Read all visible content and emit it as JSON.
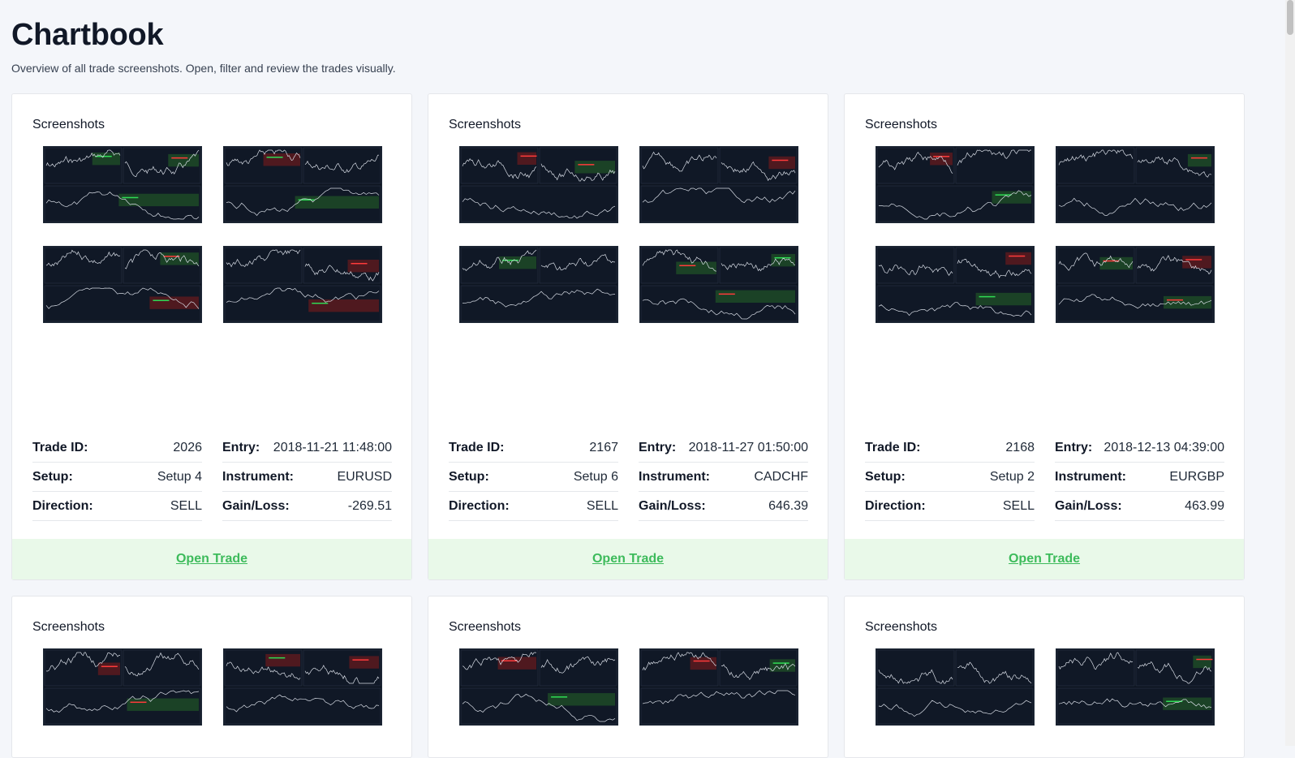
{
  "page": {
    "title": "Chartbook",
    "subtitle": "Overview of all trade screenshots. Open, filter and review the trades visually."
  },
  "colors": {
    "accent": "#3dbb5b",
    "footer_bg": "#e9f9e9",
    "chart_bg": "#0e1521"
  },
  "labels": {
    "screenshots": "Screenshots",
    "trade_id": "Trade ID:",
    "entry": "Entry:",
    "setup": "Setup:",
    "instrument": "Instrument:",
    "direction": "Direction:",
    "gain_loss": "Gain/Loss:",
    "open_trade": "Open Trade"
  },
  "trades": [
    {
      "trade_id": "2026",
      "entry": "2018-11-21 11:48:00",
      "setup": "Setup 4",
      "instrument": "EURUSD",
      "direction": "SELL",
      "gain_loss": "-269.51"
    },
    {
      "trade_id": "2167",
      "entry": "2018-11-27 01:50:00",
      "setup": "Setup 6",
      "instrument": "CADCHF",
      "direction": "SELL",
      "gain_loss": "646.39"
    },
    {
      "trade_id": "2168",
      "entry": "2018-12-13 04:39:00",
      "setup": "Setup 2",
      "instrument": "EURGBP",
      "direction": "SELL",
      "gain_loss": "463.99"
    }
  ]
}
